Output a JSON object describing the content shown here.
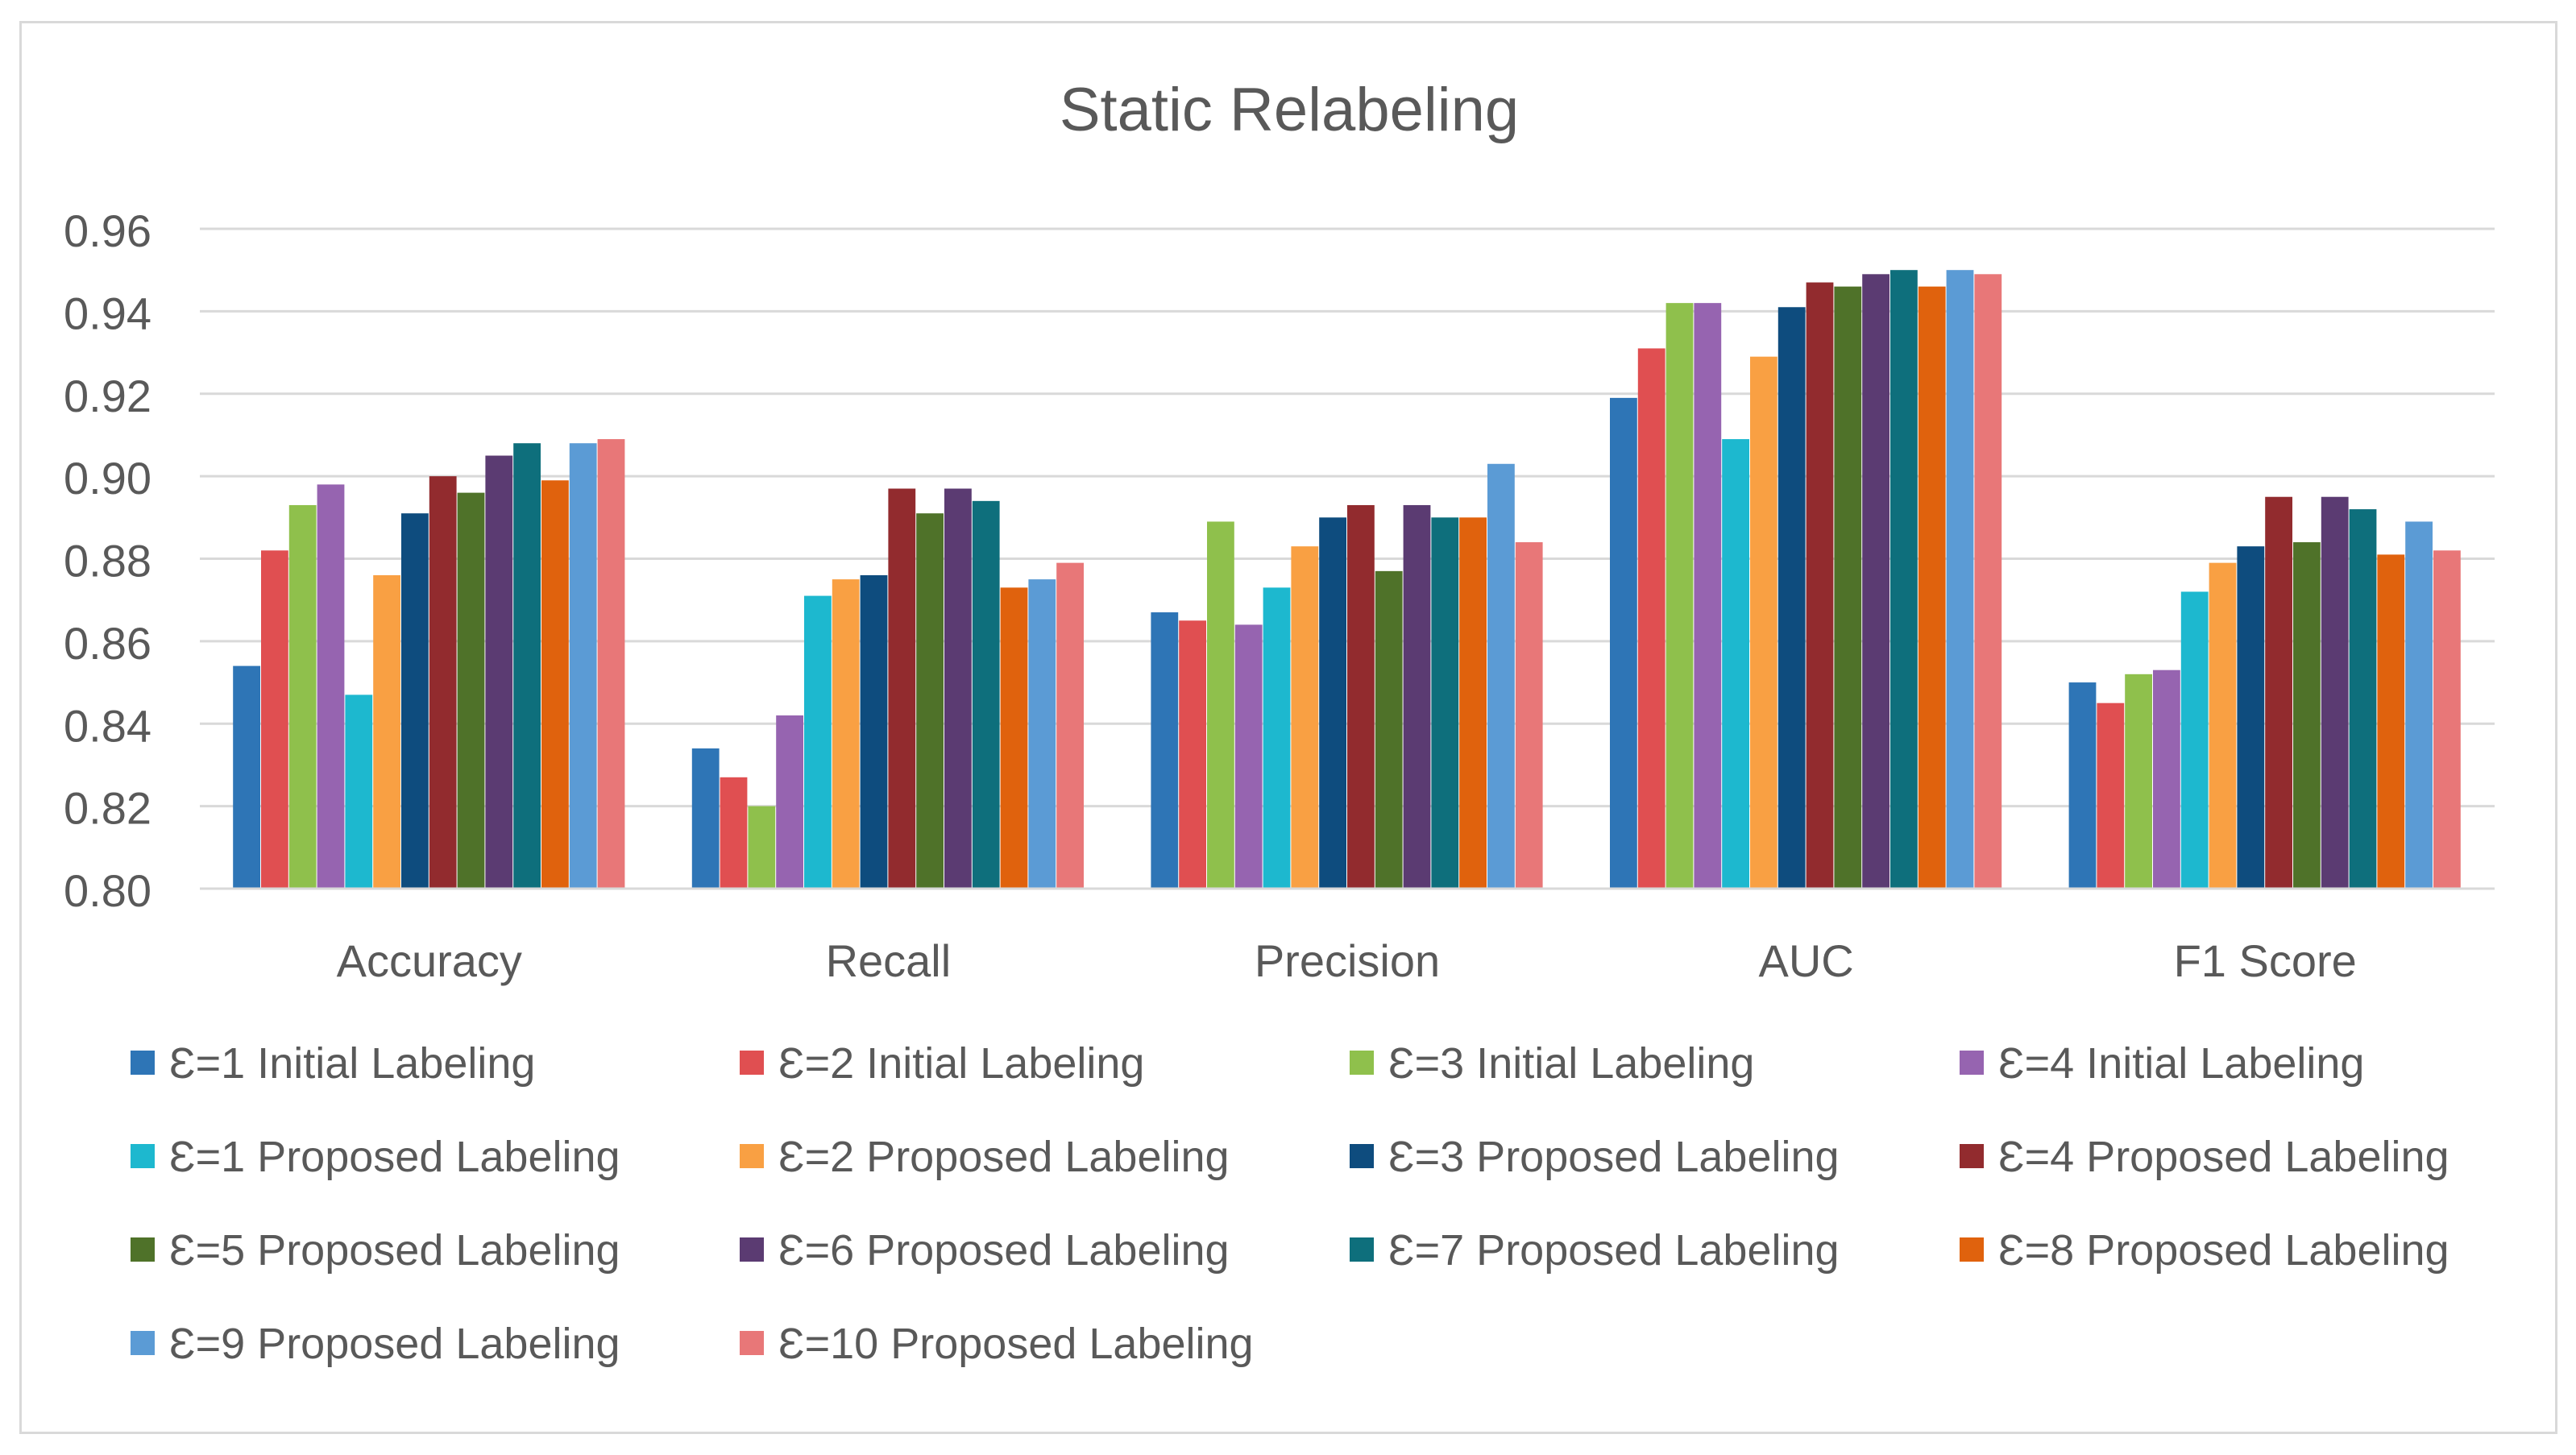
{
  "chart_data": {
    "type": "bar",
    "title": "Static Relabeling",
    "xlabel": "",
    "ylabel": "",
    "ylim": [
      0.8,
      0.96
    ],
    "yticks": [
      "0.80",
      "0.82",
      "0.84",
      "0.86",
      "0.88",
      "0.90",
      "0.92",
      "0.94",
      "0.96"
    ],
    "grid": true,
    "legend_position": "bottom",
    "categories": [
      "Accuracy",
      "Recall",
      "Precision",
      "AUC",
      "F1 Score"
    ],
    "series": [
      {
        "name": "Ɛ=1 Initial Labeling",
        "color": "#2E75B6",
        "values": [
          0.854,
          0.834,
          0.867,
          0.919,
          0.85
        ]
      },
      {
        "name": "Ɛ=2 Initial Labeling",
        "color": "#E04F51",
        "values": [
          0.882,
          0.827,
          0.865,
          0.931,
          0.845
        ]
      },
      {
        "name": "Ɛ=3 Initial Labeling",
        "color": "#8FC04C",
        "values": [
          0.893,
          0.82,
          0.889,
          0.942,
          0.852
        ]
      },
      {
        "name": "Ɛ=4 Initial Labeling",
        "color": "#9664B0",
        "values": [
          0.898,
          0.842,
          0.864,
          0.942,
          0.853
        ]
      },
      {
        "name": "Ɛ=1 Proposed Labeling",
        "color": "#1DB8CF",
        "values": [
          0.847,
          0.871,
          0.873,
          0.909,
          0.872
        ]
      },
      {
        "name": "Ɛ=2 Proposed Labeling",
        "color": "#F9A043",
        "values": [
          0.876,
          0.875,
          0.883,
          0.929,
          0.879
        ]
      },
      {
        "name": "Ɛ=3 Proposed Labeling",
        "color": "#0E4C7E",
        "values": [
          0.891,
          0.876,
          0.89,
          0.941,
          0.883
        ]
      },
      {
        "name": "Ɛ=4 Proposed Labeling",
        "color": "#922B2E",
        "values": [
          0.9,
          0.897,
          0.893,
          0.947,
          0.895
        ]
      },
      {
        "name": "Ɛ=5 Proposed Labeling",
        "color": "#4F7229",
        "values": [
          0.896,
          0.891,
          0.877,
          0.946,
          0.884
        ]
      },
      {
        "name": "Ɛ=6 Proposed Labeling",
        "color": "#5B3B72",
        "values": [
          0.905,
          0.897,
          0.893,
          0.949,
          0.895
        ]
      },
      {
        "name": "Ɛ=7 Proposed Labeling",
        "color": "#0E6F7C",
        "values": [
          0.908,
          0.894,
          0.89,
          0.95,
          0.892
        ]
      },
      {
        "name": "Ɛ=8 Proposed Labeling",
        "color": "#E0620D",
        "values": [
          0.899,
          0.873,
          0.89,
          0.946,
          0.881
        ]
      },
      {
        "name": "Ɛ=9 Proposed Labeling",
        "color": "#5B9BD5",
        "values": [
          0.908,
          0.875,
          0.903,
          0.95,
          0.889
        ]
      },
      {
        "name": "Ɛ=10 Proposed Labeling",
        "color": "#E87778",
        "values": [
          0.909,
          0.879,
          0.884,
          0.949,
          0.882
        ]
      }
    ]
  }
}
